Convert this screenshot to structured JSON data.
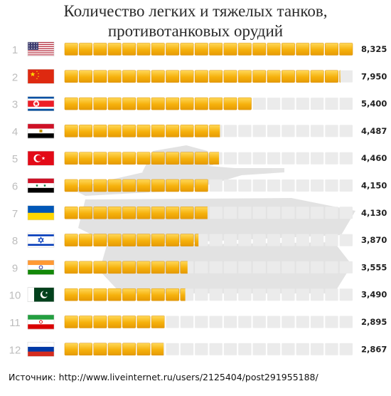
{
  "title_line1": "Количество легких и тяжелых танков,",
  "title_line2": "противотанковых орудий",
  "source": "Источник: http://www.liveinternet.ru/users/2125404/post291955188/",
  "colors": {
    "bar_fill": "#f6b10c",
    "bar_light": "#ffd95a",
    "bar_track": "#ebebeb",
    "rank_text": "#bdbdbd",
    "value_text": "#222222",
    "tank_silhouette": "#dedede"
  },
  "chart_data": {
    "type": "bar",
    "orientation": "horizontal",
    "max_value": 8325,
    "rows": [
      {
        "rank": "1",
        "flag": "usa-flag-icon",
        "value": 8325,
        "label": "8,325"
      },
      {
        "rank": "2",
        "flag": "china-flag-icon",
        "value": 7950,
        "label": "7,950"
      },
      {
        "rank": "3",
        "flag": "north-korea-flag-icon",
        "value": 5400,
        "label": "5,400"
      },
      {
        "rank": "4",
        "flag": "egypt-flag-icon",
        "value": 4487,
        "label": "4,487"
      },
      {
        "rank": "5",
        "flag": "turkey-flag-icon",
        "value": 4460,
        "label": "4,460"
      },
      {
        "rank": "6",
        "flag": "syria-flag-icon",
        "value": 4150,
        "label": "4,150"
      },
      {
        "rank": "7",
        "flag": "ukraine-flag-icon",
        "value": 4130,
        "label": "4,130"
      },
      {
        "rank": "8",
        "flag": "israel-flag-icon",
        "value": 3870,
        "label": "3,870"
      },
      {
        "rank": "9",
        "flag": "india-flag-icon",
        "value": 3555,
        "label": "3,555"
      },
      {
        "rank": "10",
        "flag": "pakistan-flag-icon",
        "value": 3490,
        "label": "3,490"
      },
      {
        "rank": "11",
        "flag": "iran-flag-icon",
        "value": 2895,
        "label": "2,895"
      },
      {
        "rank": "12",
        "flag": "russia-flag-icon",
        "value": 2867,
        "label": "2,867"
      }
    ]
  }
}
